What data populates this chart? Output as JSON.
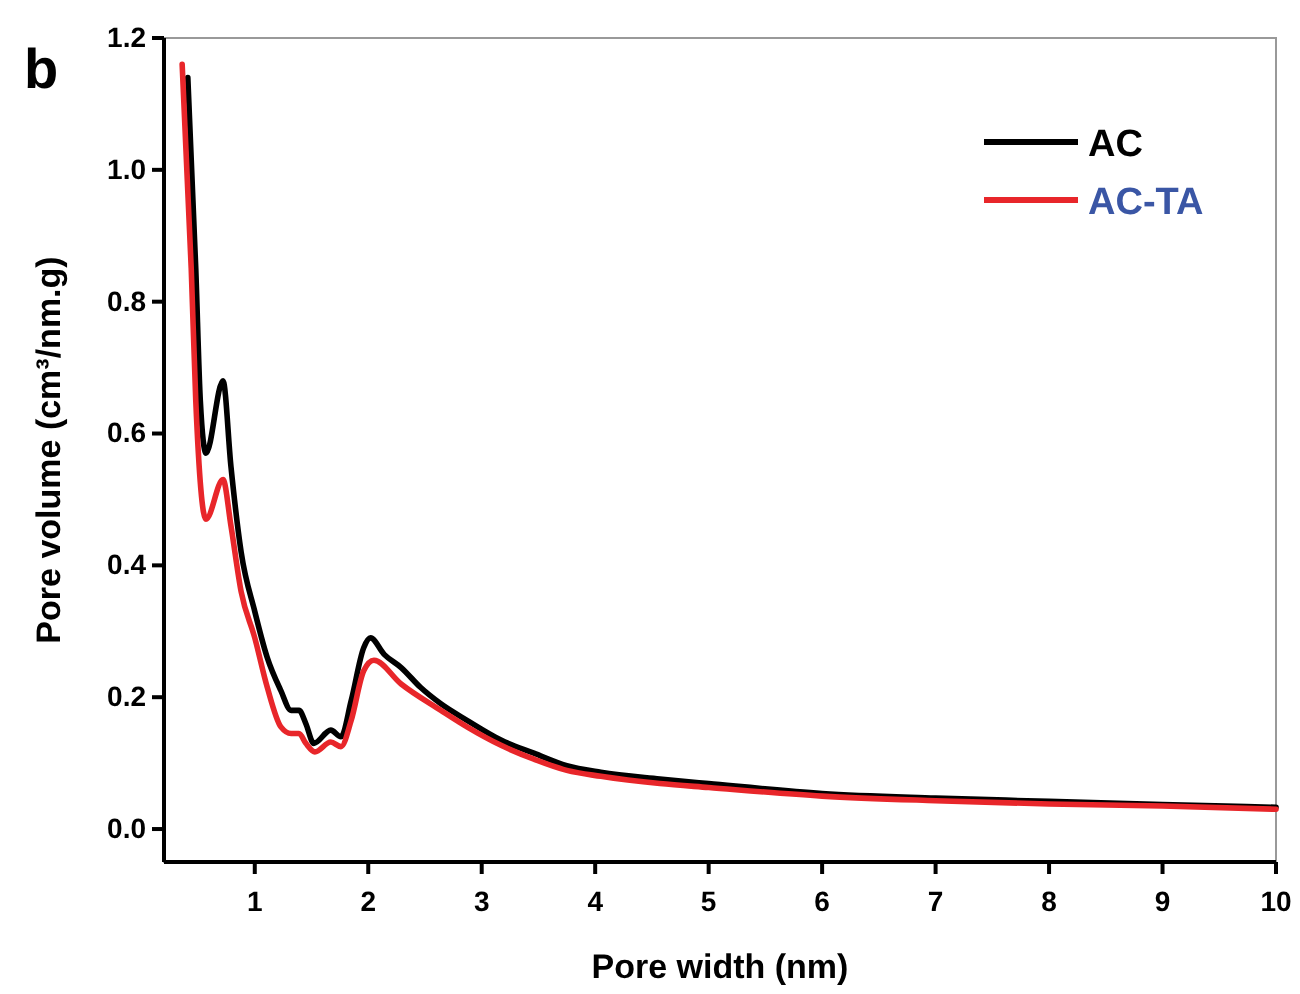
{
  "chart_data": {
    "type": "line",
    "xlabel": "Pore width (nm)",
    "ylabel": "Pore volume (cm³/nm.g)",
    "annotations": [
      "b"
    ],
    "xlim": [
      0.2,
      10
    ],
    "ylim": [
      -0.05,
      1.2
    ],
    "xticks": [
      1,
      2,
      3,
      4,
      5,
      6,
      7,
      8,
      9,
      10
    ],
    "yticks": [
      {
        "value": 0,
        "label": "0.0"
      },
      {
        "value": 0.2,
        "label": "0.2"
      },
      {
        "value": 0.4,
        "label": "0.4"
      },
      {
        "value": 0.6,
        "label": "0.6"
      },
      {
        "value": 0.8,
        "label": "0.8"
      },
      {
        "value": 1.0,
        "label": "1.0"
      },
      {
        "value": 1.2,
        "label": "1.2"
      }
    ],
    "grid": false,
    "legend": "top right",
    "line_style": "solid",
    "marker": "none",
    "series": [
      {
        "name": "AC",
        "color": "#000000",
        "x": [
          0.41,
          0.48,
          0.52,
          0.57,
          0.72,
          0.79,
          0.88,
          1.0,
          1.11,
          1.23,
          1.32,
          1.39,
          1.45,
          1.52,
          1.67,
          1.76,
          1.85,
          1.96,
          2.02,
          2.14,
          2.29,
          2.46,
          2.64,
          2.87,
          3.17,
          3.46,
          3.75,
          4.05,
          4.57,
          5,
          6,
          7,
          8,
          9,
          10
        ],
        "values": [
          1.14,
          0.85,
          0.65,
          0.57,
          0.68,
          0.55,
          0.42,
          0.33,
          0.26,
          0.21,
          0.18,
          0.18,
          0.16,
          0.13,
          0.15,
          0.14,
          0.195,
          0.275,
          0.29,
          0.265,
          0.245,
          0.215,
          0.19,
          0.165,
          0.135,
          0.115,
          0.096,
          0.086,
          0.076,
          0.069,
          0.054,
          0.047,
          0.042,
          0.037,
          0.033
        ]
      },
      {
        "name": "AC-TA",
        "color": "#e8262a",
        "x": [
          0.36,
          0.44,
          0.48,
          0.57,
          0.72,
          0.79,
          0.88,
          1.0,
          1.11,
          1.23,
          1.32,
          1.39,
          1.45,
          1.53,
          1.67,
          1.76,
          1.85,
          1.96,
          2.05,
          2.29,
          2.64,
          2.87,
          3.17,
          3.46,
          3.75,
          4.05,
          4.57,
          5,
          6,
          7,
          8,
          9,
          10
        ],
        "values": [
          1.16,
          0.85,
          0.65,
          0.47,
          0.53,
          0.46,
          0.36,
          0.29,
          0.215,
          0.155,
          0.145,
          0.145,
          0.13,
          0.117,
          0.132,
          0.125,
          0.165,
          0.24,
          0.256,
          0.22,
          0.18,
          0.155,
          0.127,
          0.106,
          0.089,
          0.08,
          0.069,
          0.063,
          0.05,
          0.043,
          0.038,
          0.035,
          0.03
        ]
      }
    ]
  }
}
